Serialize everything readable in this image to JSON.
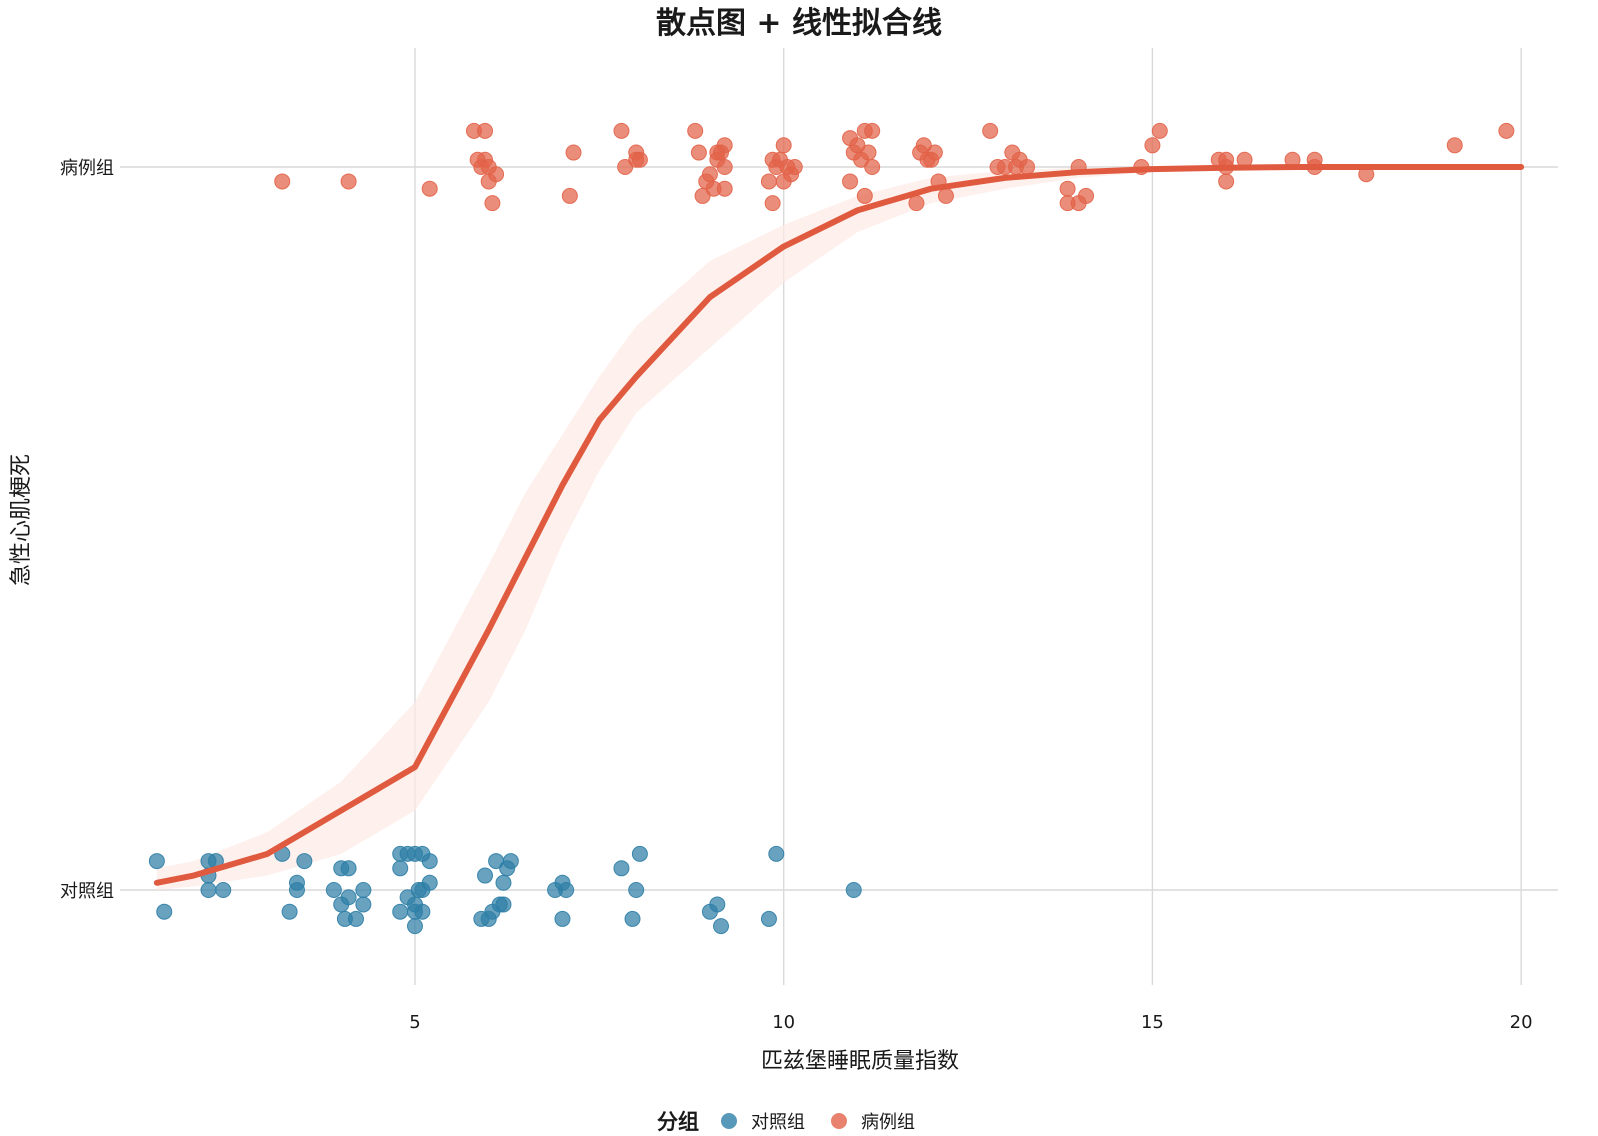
{
  "chart_data": {
    "type": "scatter",
    "title": "散点图 + 线性拟合线",
    "xlabel": "匹兹堡睡眠质量指数",
    "ylabel": "急性心肌梗死",
    "xlim": [
      1.0,
      20.5
    ],
    "x_ticks": [
      "5",
      "10",
      "15",
      "20"
    ],
    "y_categories": [
      "对照组",
      "病例组"
    ],
    "grid": true,
    "legend_title": "分组",
    "legend_position": "bottom",
    "series": [
      {
        "name": "对照组",
        "color": "#2e7ea6",
        "y_category": "对照组",
        "points": [
          [
            1.5,
            0.04
          ],
          [
            1.6,
            -0.03
          ],
          [
            2.2,
            0.04
          ],
          [
            2.3,
            0.04
          ],
          [
            2.2,
            0.02
          ],
          [
            2.2,
            0.0
          ],
          [
            2.4,
            0.0
          ],
          [
            3.2,
            0.05
          ],
          [
            3.3,
            -0.03
          ],
          [
            3.4,
            0.0
          ],
          [
            3.4,
            0.01
          ],
          [
            3.5,
            0.04
          ],
          [
            3.9,
            0.0
          ],
          [
            4.0,
            -0.02
          ],
          [
            4.0,
            0.03
          ],
          [
            4.1,
            0.03
          ],
          [
            4.05,
            -0.04
          ],
          [
            4.1,
            -0.01
          ],
          [
            4.2,
            -0.04
          ],
          [
            4.3,
            0.0
          ],
          [
            4.3,
            -0.02
          ],
          [
            4.8,
            0.05
          ],
          [
            4.8,
            0.03
          ],
          [
            4.8,
            -0.03
          ],
          [
            4.9,
            0.05
          ],
          [
            4.9,
            -0.01
          ],
          [
            5.0,
            0.05
          ],
          [
            5.0,
            -0.03
          ],
          [
            5.0,
            -0.05
          ],
          [
            5.0,
            -0.02
          ],
          [
            5.05,
            0.0
          ],
          [
            5.1,
            -0.03
          ],
          [
            5.1,
            0.0
          ],
          [
            5.1,
            0.05
          ],
          [
            5.2,
            0.01
          ],
          [
            5.2,
            0.04
          ],
          [
            5.9,
            -0.04
          ],
          [
            5.95,
            0.02
          ],
          [
            6.0,
            -0.04
          ],
          [
            6.05,
            -0.03
          ],
          [
            6.1,
            0.04
          ],
          [
            6.15,
            -0.02
          ],
          [
            6.2,
            0.01
          ],
          [
            6.2,
            -0.02
          ],
          [
            6.25,
            0.03
          ],
          [
            6.3,
            0.04
          ],
          [
            6.9,
            0.0
          ],
          [
            7.0,
            0.01
          ],
          [
            7.0,
            -0.04
          ],
          [
            7.05,
            0.0
          ],
          [
            7.8,
            0.03
          ],
          [
            7.95,
            -0.04
          ],
          [
            8.0,
            0.0
          ],
          [
            8.05,
            0.05
          ],
          [
            9.0,
            -0.03
          ],
          [
            9.1,
            -0.02
          ],
          [
            9.15,
            -0.05
          ],
          [
            9.8,
            -0.04
          ],
          [
            9.9,
            0.05
          ],
          [
            10.95,
            0.0
          ]
        ]
      },
      {
        "name": "病例组",
        "color": "#e26248",
        "y_category": "病例组",
        "points": [
          [
            3.2,
            -0.02
          ],
          [
            4.1,
            -0.02
          ],
          [
            5.2,
            -0.03
          ],
          [
            5.8,
            0.05
          ],
          [
            5.85,
            0.01
          ],
          [
            5.9,
            0.0
          ],
          [
            5.95,
            0.05
          ],
          [
            5.95,
            0.01
          ],
          [
            6.0,
            -0.02
          ],
          [
            6.0,
            0.0
          ],
          [
            6.05,
            -0.05
          ],
          [
            6.1,
            -0.01
          ],
          [
            7.1,
            -0.04
          ],
          [
            7.15,
            0.02
          ],
          [
            7.8,
            0.05
          ],
          [
            7.85,
            0.0
          ],
          [
            8.0,
            0.02
          ],
          [
            8.05,
            0.01
          ],
          [
            8.0,
            0.01
          ],
          [
            8.8,
            0.05
          ],
          [
            8.85,
            0.02
          ],
          [
            8.9,
            -0.04
          ],
          [
            8.95,
            -0.02
          ],
          [
            9.0,
            -0.01
          ],
          [
            9.05,
            -0.03
          ],
          [
            9.1,
            0.02
          ],
          [
            9.1,
            0.01
          ],
          [
            9.15,
            0.02
          ],
          [
            9.2,
            0.03
          ],
          [
            9.2,
            0.0
          ],
          [
            9.2,
            -0.03
          ],
          [
            9.8,
            -0.02
          ],
          [
            9.85,
            0.01
          ],
          [
            9.85,
            -0.05
          ],
          [
            9.9,
            0.0
          ],
          [
            9.95,
            0.01
          ],
          [
            10.0,
            0.03
          ],
          [
            10.0,
            -0.02
          ],
          [
            10.05,
            0.0
          ],
          [
            10.1,
            -0.01
          ],
          [
            10.15,
            0.0
          ],
          [
            10.9,
            -0.02
          ],
          [
            10.9,
            0.04
          ],
          [
            10.95,
            0.02
          ],
          [
            11.0,
            0.03
          ],
          [
            11.05,
            0.01
          ],
          [
            11.1,
            0.05
          ],
          [
            11.1,
            -0.04
          ],
          [
            11.15,
            0.02
          ],
          [
            11.2,
            0.05
          ],
          [
            11.2,
            0.0
          ],
          [
            11.8,
            -0.05
          ],
          [
            11.85,
            0.02
          ],
          [
            11.9,
            0.03
          ],
          [
            11.95,
            0.01
          ],
          [
            12.0,
            0.01
          ],
          [
            12.05,
            0.02
          ],
          [
            12.1,
            -0.02
          ],
          [
            12.2,
            -0.04
          ],
          [
            12.8,
            0.05
          ],
          [
            12.9,
            0.0
          ],
          [
            13.0,
            0.0
          ],
          [
            13.1,
            0.02
          ],
          [
            13.15,
            0.0
          ],
          [
            13.2,
            0.01
          ],
          [
            13.3,
            0.0
          ],
          [
            13.85,
            -0.03
          ],
          [
            13.85,
            -0.05
          ],
          [
            14.0,
            0.0
          ],
          [
            14.0,
            -0.05
          ],
          [
            14.1,
            -0.04
          ],
          [
            14.85,
            0.0
          ],
          [
            15.0,
            0.03
          ],
          [
            15.1,
            0.05
          ],
          [
            15.9,
            0.01
          ],
          [
            16.0,
            0.01
          ],
          [
            16.0,
            -0.02
          ],
          [
            16.0,
            0.0
          ],
          [
            16.25,
            0.01
          ],
          [
            16.9,
            0.01
          ],
          [
            17.2,
            0.01
          ],
          [
            17.2,
            0.0
          ],
          [
            17.9,
            -0.01
          ],
          [
            19.1,
            0.03
          ],
          [
            19.8,
            0.05
          ]
        ]
      }
    ],
    "fit": {
      "type": "logistic",
      "color": "#e05a3f",
      "band_color": "#fdeae4",
      "x": [
        1.5,
        2,
        3,
        4,
        5,
        6,
        6.5,
        7,
        7.5,
        8,
        9,
        10,
        11,
        12,
        13,
        14,
        15,
        16,
        17,
        18,
        19,
        20
      ],
      "y": [
        0.01,
        0.02,
        0.05,
        0.11,
        0.17,
        0.36,
        0.46,
        0.56,
        0.65,
        0.71,
        0.82,
        0.89,
        0.94,
        0.97,
        0.985,
        0.993,
        0.997,
        0.999,
        1.0,
        1.0,
        1.0,
        1.0
      ],
      "band_lower": [
        0.0,
        0.005,
        0.02,
        0.05,
        0.11,
        0.26,
        0.36,
        0.48,
        0.58,
        0.66,
        0.75,
        0.84,
        0.91,
        0.95,
        0.97,
        0.985,
        0.993,
        0.997,
        0.999,
        1.0,
        1.0,
        1.0
      ],
      "band_upper": [
        0.03,
        0.04,
        0.08,
        0.15,
        0.26,
        0.45,
        0.55,
        0.63,
        0.71,
        0.78,
        0.87,
        0.92,
        0.96,
        0.985,
        0.995,
        0.999,
        1.0,
        1.0,
        1.0,
        1.0,
        1.0,
        1.0
      ]
    }
  }
}
